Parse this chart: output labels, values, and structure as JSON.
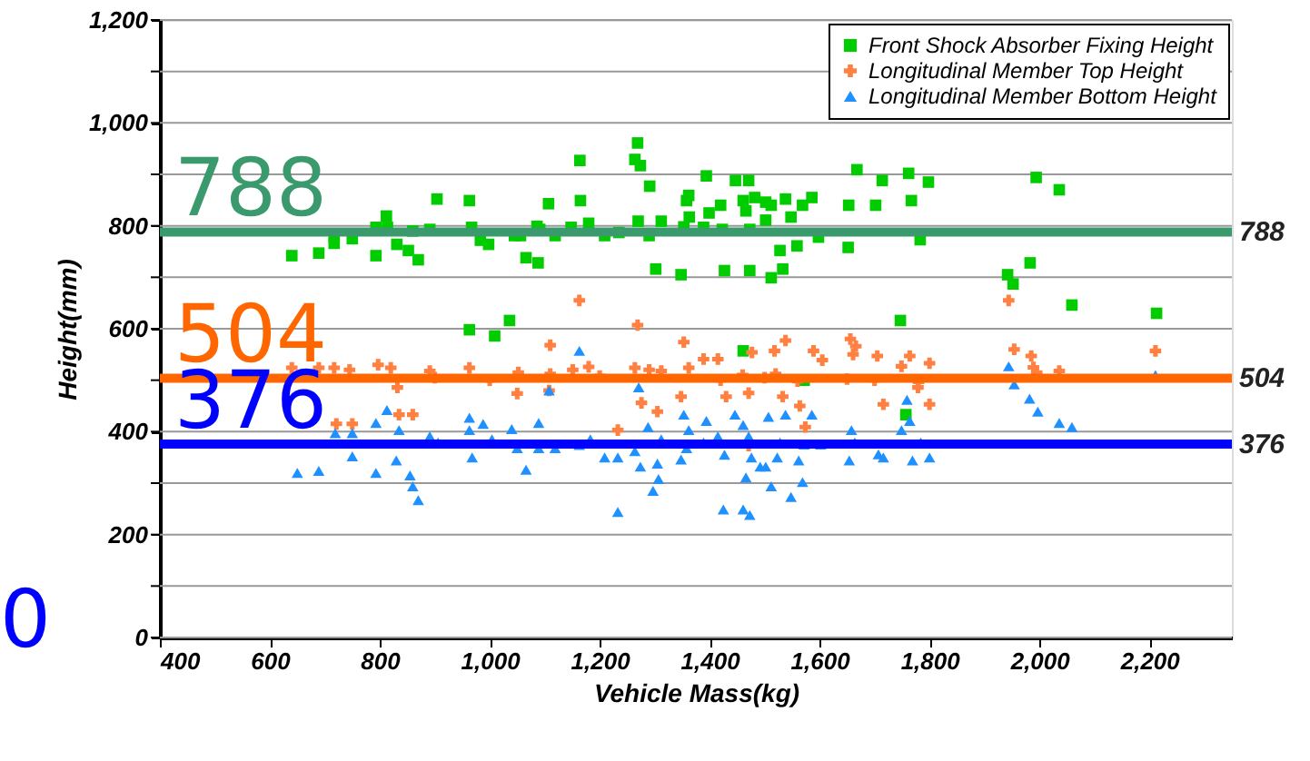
{
  "chart_data": {
    "type": "scatter",
    "xlabel": "Vehicle Mass(kg)",
    "ylabel": "Height(mm)",
    "xlim": [
      400,
      2350
    ],
    "xticks": [
      {
        "value": 400,
        "label": "400"
      },
      {
        "value": 600,
        "label": "600"
      },
      {
        "value": 800,
        "label": "800"
      },
      {
        "value": 1000,
        "label": "1,000"
      },
      {
        "value": 1200,
        "label": "1,200"
      },
      {
        "value": 1400,
        "label": "1,400"
      },
      {
        "value": 1600,
        "label": "1,600"
      },
      {
        "value": 1800,
        "label": "1,800"
      },
      {
        "value": 2000,
        "label": "2,000"
      },
      {
        "value": 2200,
        "label": "2,200"
      }
    ],
    "ylim": [
      0,
      1200
    ],
    "yticks": [
      0,
      {
        "value": 100,
        "label": null
      },
      200,
      {
        "value": 300,
        "label": null
      },
      400,
      {
        "value": 500,
        "label": null
      },
      600,
      {
        "value": 700,
        "label": null
      },
      800,
      {
        "value": 900,
        "label": null
      },
      {
        "value": 1000,
        "label": "1,000"
      },
      {
        "value": 1100,
        "label": null
      },
      {
        "value": 1200,
        "label": "1,200"
      }
    ],
    "grid": "y",
    "legend": "top right",
    "series": [
      {
        "name": "Front Shock Absorber Fixing Height",
        "color": "#00cc00",
        "marker": "square",
        "x": [
          640,
          689,
          717,
          717,
          750,
          793,
          793,
          812,
          814,
          831,
          852,
          860,
          870,
          891,
          904,
          963,
          967,
          983,
          998,
          963,
          1009,
          1036,
          1045,
          1056,
          1066,
          1088,
          1086,
          1091,
          1107,
          1119,
          1148,
          1164,
          1165,
          1180,
          1209,
          1235,
          1269,
          1264,
          1274,
          1270,
          1291,
          1290,
          1302,
          1312,
          1348,
          1353,
          1358,
          1362,
          1363,
          1394,
          1389,
          1399,
          1420,
          1423,
          1427,
          1447,
          1471,
          1461,
          1466,
          1473,
          1473,
          1482,
          1502,
          1512,
          1502,
          1528,
          1533,
          1512,
          1538,
          1548,
          1559,
          1569,
          1586,
          1598,
          1652,
          1653,
          1668,
          1702,
          1714,
          1762,
          1767,
          1783,
          1798,
          1747,
          1461,
          1572,
          1942,
          1952,
          1983,
          1994,
          2036,
          2059,
          2213,
          1757
        ],
        "values": [
          742,
          747,
          779,
          766,
          775,
          797,
          742,
          819,
          797,
          764,
          752,
          790,
          734,
          793,
          852,
          849,
          797,
          772,
          764,
          598,
          586,
          616,
          781,
          781,
          738,
          728,
          799,
          793,
          843,
          781,
          797,
          927,
          849,
          805,
          781,
          787,
          961,
          929,
          917,
          809,
          877,
          781,
          716,
          809,
          705,
          798,
          849,
          859,
          817,
          897,
          797,
          825,
          840,
          793,
          713,
          888,
          888,
          849,
          829,
          793,
          713,
          855,
          846,
          840,
          811,
          752,
          716,
          699,
          852,
          817,
          761,
          840,
          855,
          778,
          758,
          840,
          909,
          840,
          888,
          902,
          849,
          773,
          885,
          616,
          557,
          500,
          705,
          687,
          728,
          894,
          870,
          646,
          630,
          433
        ]
      },
      {
        "name": "Longitudinal Member Top Height",
        "color": "#ff8040",
        "marker": "cross",
        "x": [
          1163,
          1269,
          1110,
          1353,
          640,
          689,
          717,
          745,
          797,
          820,
          891,
          963,
          1052,
          1110,
          1151,
          1180,
          1264,
          1290,
          1312,
          1362,
          721,
          750,
          835,
          860,
          1050,
          1108,
          1276,
          1305,
          1233,
          1348,
          832,
          1944,
          1954,
          2211,
          1985,
          2036,
          1989,
          1656,
          1666,
          1705,
          1764,
          1800,
          1538,
          1589,
          1518,
          1477,
          1415,
          1389,
          1430,
          1471,
          1533,
          1564,
          1574,
          1716,
          1800,
          1749,
          1779,
          1471,
          1605,
          1661,
          1995,
          1420,
          1500,
          1560,
          1650,
          1700,
          1780,
          1460,
          1520,
          900,
          1000,
          1200
        ],
        "values": [
          655,
          607,
          568,
          574,
          524,
          524,
          524,
          520,
          530,
          524,
          518,
          524,
          515,
          512,
          520,
          526,
          524,
          520,
          518,
          524,
          415,
          415,
          433,
          433,
          474,
          480,
          456,
          439,
          403,
          468,
          486,
          655,
          560,
          557,
          547,
          518,
          525,
          580,
          566,
          547,
          547,
          533,
          577,
          557,
          557,
          554,
          541,
          541,
          468,
          475,
          468,
          450,
          409,
          453,
          453,
          527,
          486,
          373,
          539,
          550,
          515,
          500,
          505,
          498,
          502,
          500,
          497,
          510,
          512,
          505,
          500,
          508
        ]
      },
      {
        "name": "Longitudinal Member Bottom Height",
        "color": "#1e90ff",
        "marker": "triangle",
        "x": [
          719,
          750,
          750,
          793,
          813,
          835,
          830,
          793,
          855,
          860,
          870,
          689,
          650,
          891,
          906,
          963,
          988,
          963,
          968,
          1004,
          1040,
          1050,
          1066,
          1089,
          1089,
          1108,
          1119,
          1163,
          1163,
          1183,
          1209,
          1233,
          1233,
          1271,
          1264,
          1274,
          1288,
          1297,
          1307,
          1312,
          1305,
          1348,
          1353,
          1362,
          1358,
          1394,
          1389,
          1415,
          1427,
          1425,
          1446,
          1461,
          1466,
          1461,
          1473,
          1471,
          1476,
          1492,
          1502,
          1507,
          1512,
          1523,
          1528,
          1538,
          1548,
          1562,
          1569,
          1572,
          1586,
          1602,
          1654,
          1658,
          1664,
          1707,
          1716,
          1749,
          1759,
          1764,
          1769,
          1784,
          1800,
          1944,
          1954,
          1982,
          1997,
          2036,
          2059,
          2211
        ],
        "values": [
          397,
          397,
          352,
          417,
          442,
          403,
          344,
          320,
          315,
          294,
          267,
          324,
          320,
          391,
          379,
          427,
          415,
          403,
          350,
          385,
          405,
          368,
          326,
          417,
          368,
          480,
          368,
          557,
          374,
          385,
          350,
          244,
          350,
          486,
          362,
          332,
          409,
          285,
          308,
          385,
          338,
          346,
          433,
          403,
          368,
          421,
          379,
          391,
          355,
          249,
          433,
          413,
          311,
          249,
          238,
          391,
          350,
          332,
          332,
          429,
          294,
          350,
          379,
          433,
          273,
          344,
          302,
          375,
          433,
          375,
          344,
          403,
          379,
          356,
          350,
          403,
          462,
          421,
          344,
          379,
          350,
          527,
          492,
          464,
          439,
          417,
          409,
          510
        ]
      }
    ],
    "ref_lines": [
      {
        "axis": "y",
        "value": 788,
        "label": "788",
        "color": "#3a9a6e"
      },
      {
        "axis": "y",
        "value": 504,
        "label": "504",
        "color": "#ff6600"
      },
      {
        "axis": "y",
        "value": 376,
        "label": "376",
        "color": "#0000ff"
      }
    ],
    "annotations": [
      "788",
      "504",
      "376",
      "0"
    ]
  }
}
